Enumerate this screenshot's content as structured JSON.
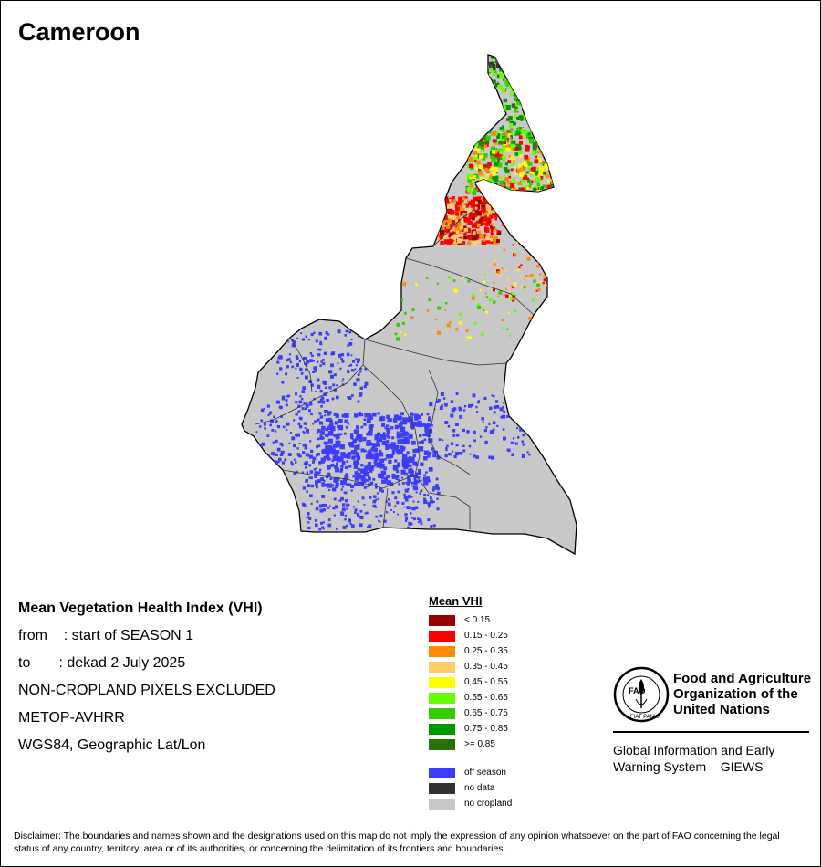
{
  "map": {
    "title": "Cameroon"
  },
  "info": {
    "heading": "Mean Vegetation Health Index (VHI)",
    "from": "from    : start of SEASON 1",
    "to": "to       : dekad 2 July 2025",
    "exclusion": "NON-CROPLAND PIXELS EXCLUDED",
    "sensor": "METOP-AVHRR",
    "projection": "WGS84, Geographic Lat/Lon"
  },
  "legend": {
    "title": "Mean VHI",
    "classes": [
      {
        "label": "< 0.15",
        "color": "#990000"
      },
      {
        "label": "0.15 - 0.25",
        "color": "#ff0000"
      },
      {
        "label": "0.25 - 0.35",
        "color": "#ff8c00"
      },
      {
        "label": "0.35 - 0.45",
        "color": "#ffcc66"
      },
      {
        "label": "0.45 - 0.55",
        "color": "#ffff00"
      },
      {
        "label": "0.55 - 0.65",
        "color": "#66ff00"
      },
      {
        "label": "0.65 - 0.75",
        "color": "#33cc00"
      },
      {
        "label": "0.75 - 0.85",
        "color": "#009900"
      },
      {
        "label": ">= 0.85",
        "color": "#267300"
      }
    ],
    "other": [
      {
        "label": "off season",
        "color": "#3d3dff"
      },
      {
        "label": "no data",
        "color": "#333333"
      },
      {
        "label": "no cropland",
        "color": "#c8c8c8"
      }
    ]
  },
  "branding": {
    "logo_letters": "FAO",
    "logo_motto": "FIAT PANIS",
    "org_line1": "Food and Agriculture",
    "org_line2": "Organization of the",
    "org_line3": "United Nations",
    "system_line1": "Global Information and Early",
    "system_line2": "Warning System – GIEWS"
  },
  "disclaimer": "Disclaimer: The boundaries and names shown and the designations used on this map do not imply the expression of any opinion whatsoever on the part of FAO concerning the legal status of any country, territory, area or of its authorities, or concerning the delimitation of its frontiers and boundaries."
}
